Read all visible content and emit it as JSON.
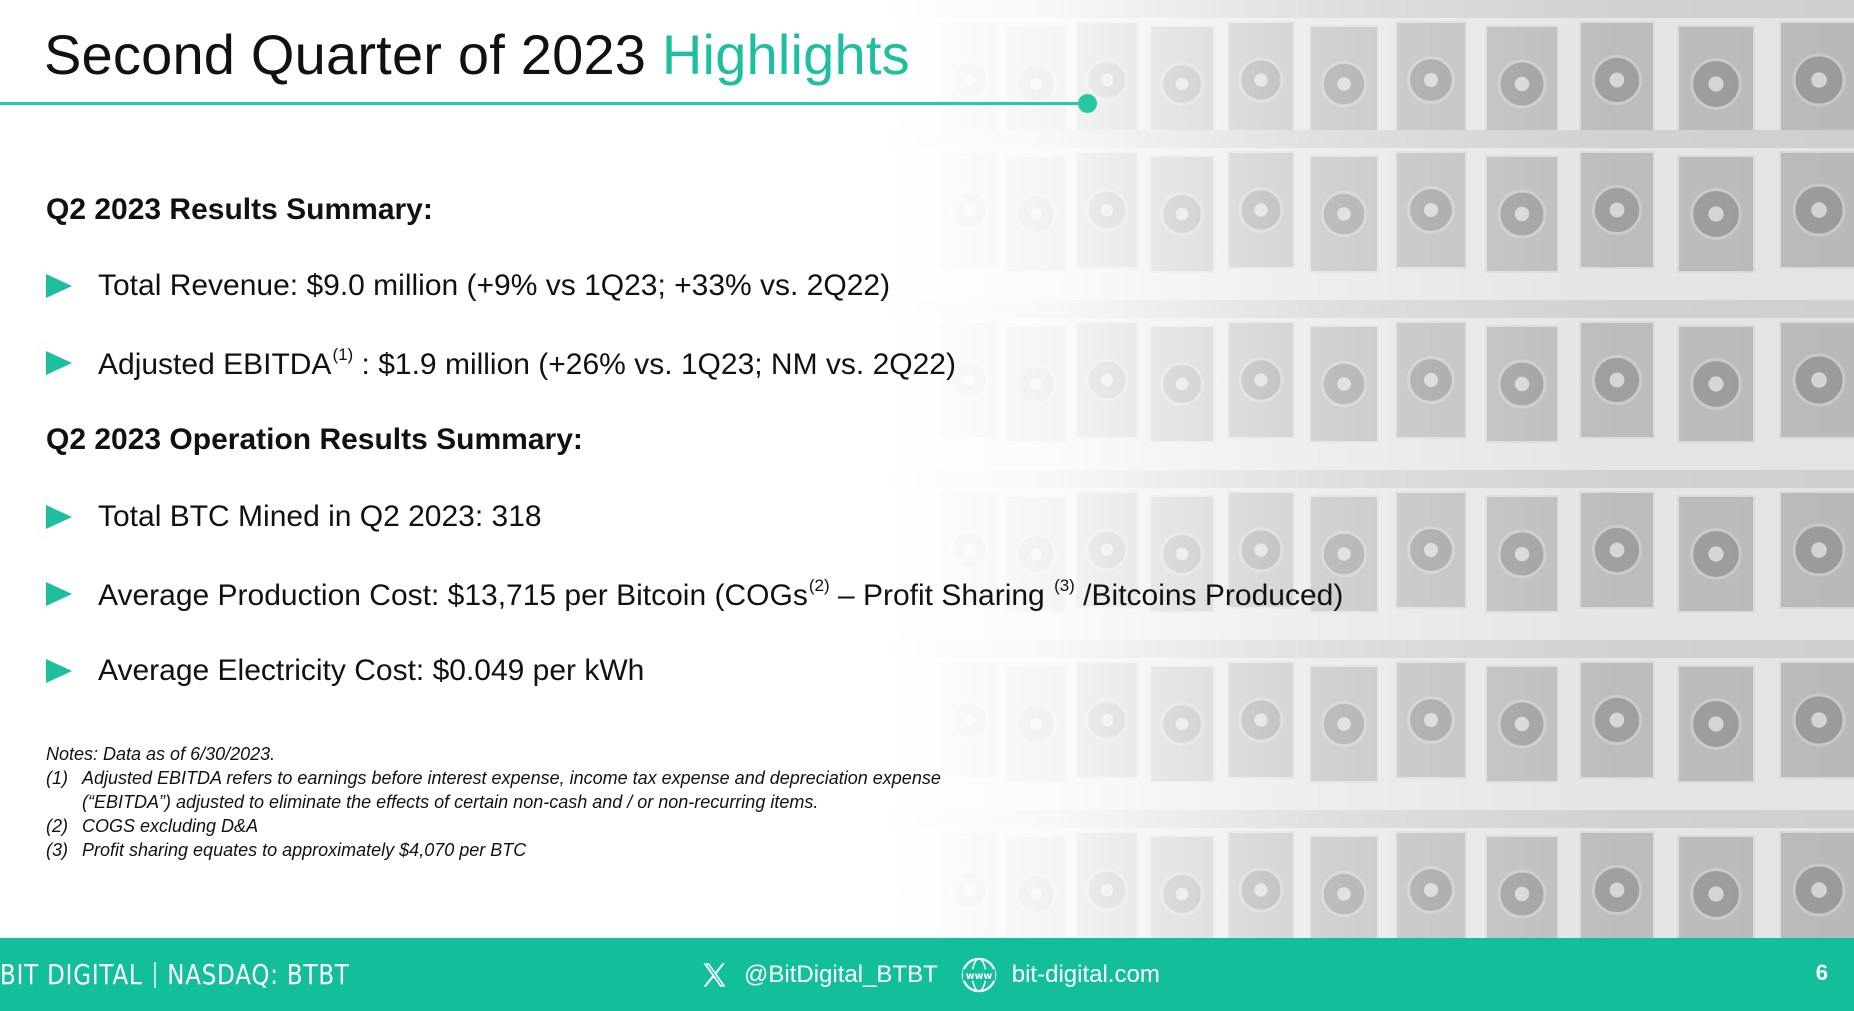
{
  "slide": {
    "title_main": "Second Quarter of 2023",
    "title_accent": "Highlights",
    "page_number": "6"
  },
  "section1": {
    "heading": "Q2 2023 Results Summary:",
    "bullets": [
      {
        "text": "Total Revenue: $9.0 million (+9% vs 1Q23; +33% vs. 2Q22)"
      },
      {
        "text_before": "Adjusted EBITDA",
        "sup": "(1)",
        "text_after": " : $1.9 million (+26% vs. 1Q23; NM vs. 2Q22)"
      }
    ]
  },
  "section2": {
    "heading": "Q2 2023 Operation Results Summary:",
    "bullets": [
      {
        "text": "Total BTC Mined in Q2 2023: 318"
      },
      {
        "text_before": "Average Production Cost: $13,715 per Bitcoin (COGs",
        "sup1": "(2)",
        "text_mid": " – Profit Sharing ",
        "sup2": "(3)",
        "text_after": " /Bitcoins Produced)"
      },
      {
        "text": "Average Electricity Cost: $0.049 per kWh"
      }
    ]
  },
  "notes": {
    "header": "Notes:  Data as of 6/30/2023.",
    "items": [
      {
        "num": "(1)",
        "line1": "Adjusted EBITDA refers to earnings before interest expense, income tax expense and depreciation expense",
        "line2": "(“EBITDA”) adjusted to eliminate the effects of certain non-cash and / or non-recurring items."
      },
      {
        "num": "(2)",
        "line1": "COGS excluding D&A"
      },
      {
        "num": "(3)",
        "line1": "Profit sharing equates to approximately $4,070 per BTC"
      }
    ]
  },
  "footer": {
    "brand_left": "BIT DIGITAL",
    "brand_right": "NASDAQ: BTBT",
    "social_handle": "@BitDigital_BTBT",
    "website": "bit-digital.com",
    "icons": {
      "social": "x-logo-icon",
      "website": "www-globe-icon"
    }
  },
  "colors": {
    "accent": "#1dbf9f",
    "footer": "#12bf9a",
    "text": "#111111"
  }
}
